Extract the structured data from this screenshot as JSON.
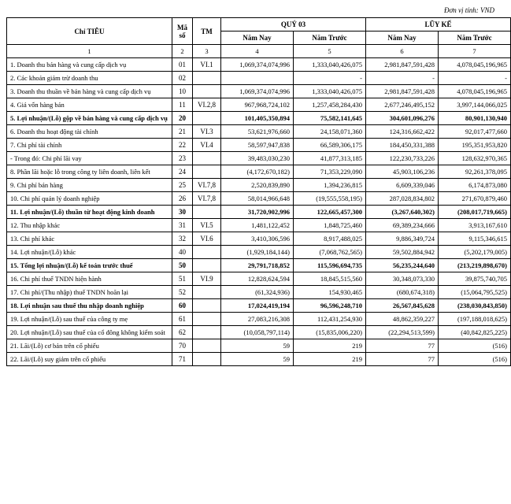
{
  "unit_label": "Đơn vị tính: VND",
  "headers": {
    "chitieu": "Chỉ TIÊU",
    "maso": "Mã số",
    "tm": "TM",
    "quy": "QUÝ 03",
    "luyke": "LŨY KẾ",
    "namnay": "Năm Nay",
    "namtruoc": "Năm Trước"
  },
  "headnums": [
    "1",
    "2",
    "3",
    "4",
    "5",
    "6",
    "7"
  ],
  "rows": [
    {
      "bold": false,
      "label": "1. Doanh thu bán hàng và cung cấp dịch vụ",
      "code": "01",
      "tm": "VI.1",
      "c4": "1,069,374,074,996",
      "c5": "1,333,040,426,075",
      "c6": "2,981,847,591,428",
      "c7": "4,078,045,196,965"
    },
    {
      "bold": false,
      "label": "2. Các khoản giảm trừ doanh thu",
      "code": "02",
      "tm": "",
      "c4": "",
      "c5": "-",
      "c6": "-",
      "c7": "-"
    },
    {
      "bold": false,
      "label": "3. Doanh thu thuần về bán hàng và cung cấp dịch vụ",
      "code": "10",
      "tm": "",
      "c4": "1,069,374,074,996",
      "c5": "1,333,040,426,075",
      "c6": "2,981,847,591,428",
      "c7": "4,078,045,196,965"
    },
    {
      "bold": false,
      "label": "4. Giá vốn hàng bán",
      "code": "11",
      "tm": "VI.2,8",
      "c4": "967,968,724,102",
      "c5": "1,257,458,284,430",
      "c6": "2,677,246,495,152",
      "c7": "3,997,144,066,025"
    },
    {
      "bold": true,
      "label": "5. Lợi nhuận/(Lỗ) gộp về bán hàng và cung cấp dịch vụ",
      "code": "20",
      "tm": "",
      "c4": "101,405,350,894",
      "c5": "75,582,141,645",
      "c6": "304,601,096,276",
      "c7": "80,901,130,940"
    },
    {
      "bold": false,
      "label": "6. Doanh thu hoạt động tài chính",
      "code": "21",
      "tm": "VI.3",
      "c4": "53,621,976,660",
      "c5": "24,158,071,360",
      "c6": "124,316,662,422",
      "c7": "92,017,477,660"
    },
    {
      "bold": false,
      "label": "7. Chi phí tài chính",
      "code": "22",
      "tm": "VI.4",
      "c4": "58,597,947,838",
      "c5": "66,589,306,175",
      "c6": "184,450,331,388",
      "c7": "195,351,953,820"
    },
    {
      "bold": false,
      "label": "- Trong đó: Chi phí lãi vay",
      "code": "23",
      "tm": "",
      "c4": "39,483,030,230",
      "c5": "41,877,313,185",
      "c6": "122,230,733,226",
      "c7": "128,632,970,365"
    },
    {
      "bold": false,
      "label": "8. Phần lãi hoặc lỗ trong công ty liên doanh, liên kết",
      "code": "24",
      "tm": "",
      "c4": "(4,172,670,182)",
      "c5": "71,353,229,090",
      "c6": "45,903,106,236",
      "c7": "92,261,378,095"
    },
    {
      "bold": false,
      "label": "9. Chi phí bán hàng",
      "code": "25",
      "tm": "VI.7,8",
      "c4": "2,520,839,890",
      "c5": "1,394,236,815",
      "c6": "6,609,339,046",
      "c7": "6,174,873,080"
    },
    {
      "bold": false,
      "label": "10. Chi phí quản lý doanh nghiệp",
      "code": "26",
      "tm": "VI.7,8",
      "c4": "58,014,966,648",
      "c5": "(19,555,558,195)",
      "c6": "287,028,834,802",
      "c7": "271,670,879,460"
    },
    {
      "bold": true,
      "label": "11. Lợi nhuận/(Lỗ) thuần từ hoạt động kinh doanh",
      "code": "30",
      "tm": "",
      "c4": "31,720,902,996",
      "c5": "122,665,457,300",
      "c6": "(3,267,640,302)",
      "c7": "(208,017,719,665)"
    },
    {
      "bold": false,
      "label": "12. Thu nhập khác",
      "code": "31",
      "tm": "VI.5",
      "c4": "1,481,122,452",
      "c5": "1,848,725,460",
      "c6": "69,389,234,666",
      "c7": "3,913,167,610"
    },
    {
      "bold": false,
      "label": "13. Chi phí khác",
      "code": "32",
      "tm": "VI.6",
      "c4": "3,410,306,596",
      "c5": "8,917,488,025",
      "c6": "9,886,349,724",
      "c7": "9,115,346,615"
    },
    {
      "bold": false,
      "label": "14. Lợi nhuận/(Lỗ) khác",
      "code": "40",
      "tm": "",
      "c4": "(1,929,184,144)",
      "c5": "(7,068,762,565)",
      "c6": "59,502,884,942",
      "c7": "(5,202,179,005)"
    },
    {
      "bold": true,
      "label": "15. Tổng lợi nhuận/(Lỗ) kế toán trước thuế",
      "code": "50",
      "tm": "",
      "c4": "29,791,718,852",
      "c5": "115,596,694,735",
      "c6": "56,235,244,640",
      "c7": "(213,219,898,670)"
    },
    {
      "bold": false,
      "label": "16. Chi phí thuế TNDN hiện hành",
      "code": "51",
      "tm": "VI.9",
      "c4": "12,828,624,594",
      "c5": "18,845,515,560",
      "c6": "30,348,073,330",
      "c7": "39,875,740,705"
    },
    {
      "bold": false,
      "label": "17. Chi phí/(Thu nhập) thuế TNDN hoãn lại",
      "code": "52",
      "tm": "",
      "c4": "(61,324,936)",
      "c5": "154,930,465",
      "c6": "(680,674,318)",
      "c7": "(15,064,795,525)"
    },
    {
      "bold": true,
      "label": "18. Lợi nhuận sau thuế thu nhập doanh nghiệp",
      "code": "60",
      "tm": "",
      "c4": "17,024,419,194",
      "c5": "96,596,248,710",
      "c6": "26,567,845,628",
      "c7": "(238,030,843,850)"
    },
    {
      "bold": false,
      "label": "19. Lợi nhuận/(Lỗ) sau thuế của công ty mẹ",
      "code": "61",
      "tm": "",
      "c4": "27,083,216,308",
      "c5": "112,431,254,930",
      "c6": "48,862,359,227",
      "c7": "(197,188,018,625)"
    },
    {
      "bold": false,
      "label": "20. Lợi nhuận/(Lỗ) sau thuế của cổ đông không kiểm soát",
      "code": "62",
      "tm": "",
      "c4": "(10,058,797,114)",
      "c5": "(15,835,006,220)",
      "c6": "(22,294,513,599)",
      "c7": "(40,842,825,225)"
    },
    {
      "bold": false,
      "label": "21. Lãi/(Lỗ) cơ bản trên cổ phiếu",
      "code": "70",
      "tm": "",
      "c4": "59",
      "c5": "219",
      "c6": "77",
      "c7": "(516)"
    },
    {
      "bold": false,
      "label": "22. Lãi/(Lỗ) suy giảm trên cổ phiếu",
      "code": "71",
      "tm": "",
      "c4": "59",
      "c5": "219",
      "c6": "77",
      "c7": "(516)"
    }
  ]
}
